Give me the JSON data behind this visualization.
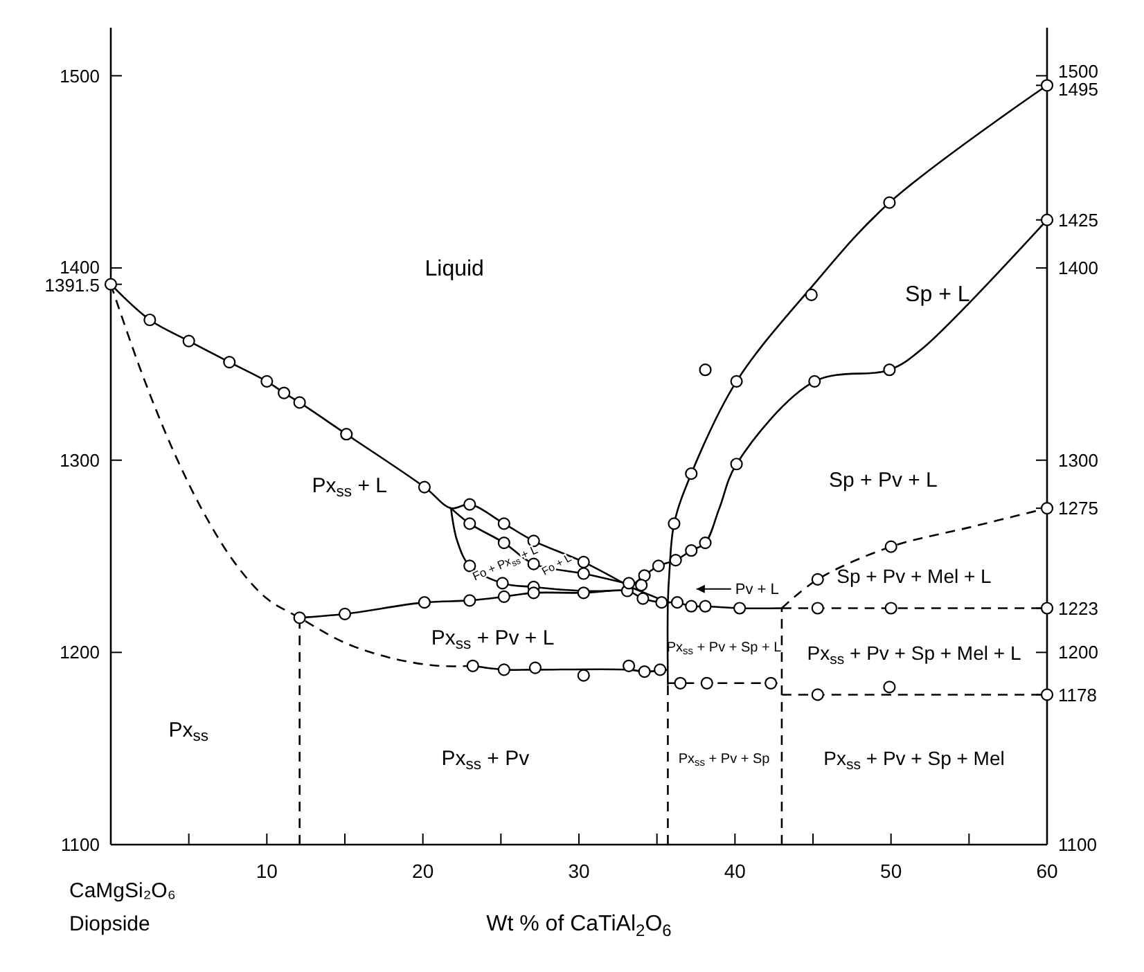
{
  "chart_data": {
    "type": "line",
    "xlabel": "Wt % of CaTiAl$_{2}$O$_{6}$",
    "xlim": [
      0,
      60
    ],
    "xticks": [
      {
        "value": 0,
        "label": null
      },
      {
        "value": 5,
        "label": null
      },
      10,
      {
        "value": 15,
        "label": null
      },
      20,
      {
        "value": 25,
        "label": null
      },
      30,
      {
        "value": 35,
        "label": null
      },
      40,
      {
        "value": 45,
        "label": null
      },
      50,
      {
        "value": 55,
        "label": null
      },
      60
    ],
    "ylim": [
      1100,
      1525
    ],
    "yticks": [
      1100,
      1200,
      1300,
      {
        "value": 1391.5,
        "label": "1391.5"
      },
      1400,
      1500
    ],
    "y2lim": [
      1100,
      1525
    ],
    "y2ticks": [
      1100,
      1178,
      1200,
      1223,
      1275,
      1300,
      1400,
      1425,
      1495,
      1500
    ],
    "series": [
      {
        "line_style": "solid",
        "color": "#000000",
        "x": [
          0,
          2.5,
          5,
          7.6,
          10,
          11.1,
          12.1,
          15.1,
          20.1,
          21.8,
          23,
          25.2,
          27.1,
          30.3,
          33.3
        ],
        "values": [
          1391.5,
          1373,
          1362,
          1351,
          1341,
          1335,
          1330,
          1313.5,
          1286,
          1275,
          1277,
          1267,
          1258,
          1247,
          1234
        ]
      },
      {
        "line_style": "solid",
        "color": "#000000",
        "x": [
          21.8,
          23,
          25.2,
          27.1,
          30.3,
          33
        ],
        "values": [
          1275,
          1267,
          1257,
          1246,
          1241,
          1236
        ]
      },
      {
        "line_style": "solid",
        "color": "#000000",
        "x": [
          21.8,
          22.2,
          23,
          25.1,
          27.1,
          30.3,
          32
        ],
        "values": [
          1275,
          1258,
          1245,
          1236,
          1234,
          1232,
          1232
        ]
      },
      {
        "type": "line",
        "line_style": "solid",
        "color": "#000000",
        "x": [
          12.1,
          15,
          20.1,
          23,
          25.2,
          27.1,
          30.3,
          33.1,
          34.1,
          35.3,
          36.3,
          37.2,
          38.1,
          40.3,
          43
        ],
        "values": [
          1218,
          1220,
          1226,
          1227,
          1229,
          1231,
          1231,
          1232,
          1228,
          1226,
          1226,
          1224,
          1224,
          1223,
          1223
        ]
      },
      {
        "type": "line",
        "line_style": "solid",
        "color": "#000000",
        "x": [
          33.3,
          35.7
        ],
        "values": [
          1234,
          1226
        ]
      },
      {
        "type": "line",
        "line_style": "dashed",
        "color": "#000000",
        "x": [
          43,
          45.3,
          50,
          60
        ],
        "values": [
          1223,
          1223,
          1223,
          1223
        ]
      },
      {
        "type": "line",
        "line_style": "solid",
        "color": "#000000",
        "x": [
          23.2,
          25.2,
          27.2,
          33.2,
          34.2,
          35.7
        ],
        "values": [
          1193,
          1191,
          1191,
          1191,
          1190,
          1191
        ]
      },
      {
        "type": "line",
        "line_style": "dashed",
        "color": "#000000",
        "x": [
          0,
          2,
          4,
          6,
          8,
          10,
          12.1,
          15,
          18,
          21,
          23.2
        ],
        "values": [
          1391.5,
          1345,
          1305,
          1272,
          1246,
          1228,
          1218,
          1205,
          1197,
          1193,
          1193
        ]
      },
      {
        "type": "line",
        "line_style": "dashed",
        "color": "#000000",
        "x": [
          12.1,
          12.1
        ],
        "values": [
          1100,
          1218
        ]
      },
      {
        "type": "line",
        "line_style": "dashed",
        "color": "#000000",
        "x": [
          35.7,
          35.7
        ],
        "values": [
          1100,
          1183
        ]
      },
      {
        "type": "line",
        "line_style": "dashed",
        "color": "#000000",
        "x": [
          43,
          43
        ],
        "values": [
          1100,
          1223
        ]
      },
      {
        "type": "line",
        "line_style": "solid",
        "color": "#000000",
        "x": [
          35.7,
          35.7,
          35.8,
          36.1,
          37.2,
          40.1,
          44.9,
          49.9,
          60
        ],
        "values": [
          1183,
          1226,
          1242,
          1267,
          1293,
          1341,
          1390,
          1434,
          1495
        ]
      },
      {
        "type": "line",
        "line_style": "solid",
        "color": "#000000",
        "x": [
          33.3,
          34.2,
          35.1,
          36.2,
          37.2,
          38.1,
          39,
          40.1,
          45.1,
          49.9,
          52,
          60
        ],
        "values": [
          1234,
          1240,
          1245,
          1248,
          1253,
          1257,
          1275,
          1298,
          1341,
          1347,
          1358,
          1425
        ]
      },
      {
        "type": "line",
        "line_style": "dashed",
        "color": "#000000",
        "x": [
          35.7,
          36.5,
          38.2,
          42.3,
          43
        ],
        "values": [
          1184,
          1184,
          1184,
          1184,
          1184
        ]
      },
      {
        "type": "line",
        "line_style": "dashed",
        "color": "#000000",
        "x": [
          43,
          45.3,
          50,
          60
        ],
        "values": [
          1178,
          1178,
          1178,
          1178
        ]
      },
      {
        "type": "line",
        "line_style": "dashed",
        "color": "#000000",
        "x": [
          43,
          45.3,
          50,
          55,
          60
        ],
        "values": [
          1223,
          1238,
          1255,
          1265,
          1275
        ]
      },
      {
        "type": "scatter",
        "marker": "circle",
        "color": "#000000",
        "x": [
          0,
          2.5,
          5,
          7.6,
          10,
          11.1,
          12.1,
          15.1,
          20.1,
          23,
          25.2,
          27.1,
          30.3,
          23,
          25.2,
          27.1,
          30.3,
          23,
          25.1,
          27.1,
          15,
          20.1,
          23,
          25.2,
          27.1,
          30.3,
          33.1,
          34.1,
          35.3,
          36.3,
          37.2,
          38.1,
          40.3,
          12.1,
          23.2,
          25.2,
          27.2,
          30.3,
          33.2,
          34.2,
          35.2,
          36.5,
          38.2,
          42.3,
          45.3,
          49.9,
          60,
          45.3,
          50,
          60,
          45.3,
          50,
          60,
          36.1,
          37.2,
          40.1,
          38.1,
          44.9,
          49.9,
          60,
          34.2,
          35.1,
          36.2,
          37.2,
          38.1,
          40.1,
          45.1,
          49.9,
          60,
          33.2,
          34
        ],
        "values": [
          1391.5,
          1373,
          1362,
          1351,
          1341,
          1335,
          1330,
          1313.5,
          1286,
          1277,
          1267,
          1258,
          1247,
          1267,
          1257,
          1246,
          1241,
          1245,
          1236,
          1234,
          1220,
          1226,
          1227,
          1229,
          1231,
          1231,
          1232,
          1228,
          1226,
          1226,
          1224,
          1224,
          1223,
          1218,
          1193,
          1191,
          1192,
          1188,
          1193,
          1190,
          1191,
          1184,
          1184,
          1184,
          1178,
          1182,
          1178,
          1223,
          1223,
          1223,
          1238,
          1255,
          1275,
          1267,
          1293,
          1341,
          1347,
          1386,
          1434,
          1495,
          1240,
          1245,
          1248,
          1253,
          1257,
          1298,
          1341,
          1347,
          1425,
          1236,
          1235
        ]
      }
    ],
    "annotations": [
      "Liquid",
      "Sp + L",
      "Sp + Pv + L",
      "Px$_{ss}$ + L",
      "Fo + Px$_{ss}$ + L",
      "Fo + L",
      "Pv + L",
      "Px$_{ss}$ + Pv + L",
      "Px$_{ss}$ + Pv + Sp + L",
      "Sp + Pv + Mel + L",
      "Px$_{ss}$ + Pv + Sp + Mel + L",
      "Px$_{ss}$",
      "Px$_{ss}$ + Pv",
      "Px$_{ss}$ + Pv + Sp",
      "Px$_{ss}$ + Pv + Sp + Mel",
      "CaMgSi₂O₆",
      "Diopside"
    ]
  }
}
